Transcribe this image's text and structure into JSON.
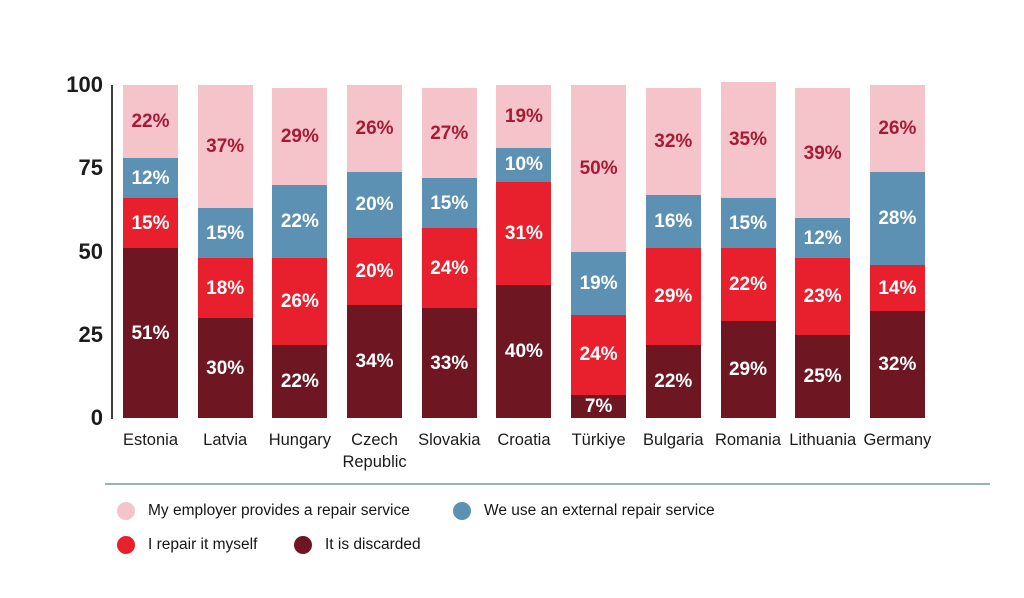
{
  "chart_data": {
    "type": "bar",
    "stacked": true,
    "title": "",
    "xlabel": "",
    "ylabel": "",
    "categories": [
      "Estonia",
      "Latvia",
      "Hungary",
      "Czech Republic",
      "Slovakia",
      "Croatia",
      "Türkiye",
      "Bulgaria",
      "Romania",
      "Lithuania",
      "Germany"
    ],
    "series": [
      {
        "name": "It is discarded",
        "color": "#6E1722",
        "label_color": "#FFFFFF",
        "values": [
          51,
          30,
          22,
          34,
          33,
          40,
          7,
          22,
          29,
          25,
          32
        ]
      },
      {
        "name": "I repair it myself",
        "color": "#E8202D",
        "label_color": "#FFFFFF",
        "values": [
          15,
          18,
          26,
          20,
          24,
          31,
          24,
          29,
          22,
          23,
          14
        ]
      },
      {
        "name": "We use an external repair service",
        "color": "#5C91B4",
        "label_color": "#FFFFFF",
        "values": [
          12,
          15,
          22,
          20,
          15,
          10,
          19,
          16,
          15,
          12,
          28
        ]
      },
      {
        "name": "My employer provides a repair service",
        "color": "#F5C3CA",
        "label_color": "#A61B33",
        "values": [
          22,
          37,
          29,
          26,
          27,
          19,
          50,
          32,
          35,
          39,
          26
        ]
      }
    ],
    "value_suffix": "%",
    "y_axis": {
      "ticks": [
        0,
        25,
        50,
        75,
        100
      ],
      "max": 100,
      "grid": false
    },
    "legend_position": "bottom",
    "legend_rows": [
      [
        {
          "label": "My employer provides a repair service",
          "color": "#F5C3CA"
        },
        {
          "label": "We use an external repair service",
          "color": "#5C91B4"
        }
      ],
      [
        {
          "label": "I repair it myself",
          "color": "#E8202D"
        },
        {
          "label": "It is discarded",
          "color": "#6E1722"
        }
      ]
    ]
  }
}
